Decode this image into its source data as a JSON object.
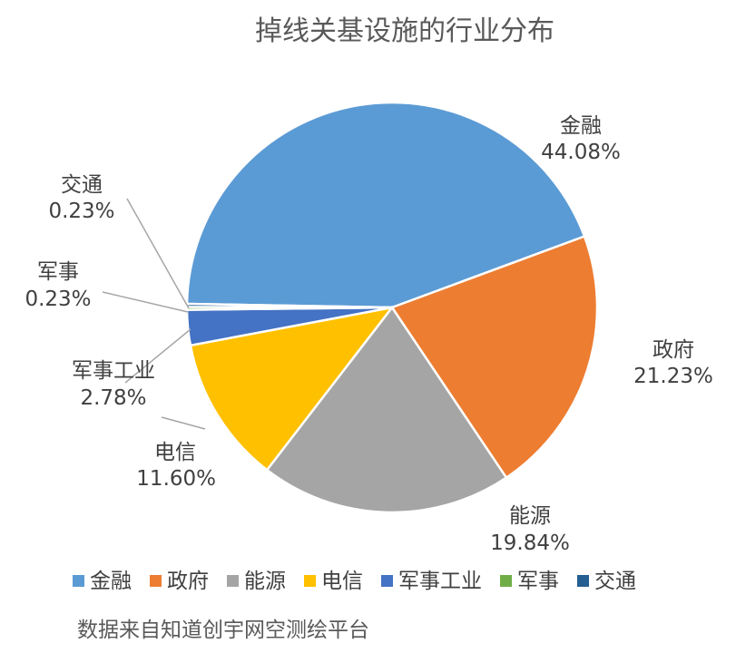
{
  "chart_data": {
    "type": "pie",
    "title": "掉线关基设施的行业分布",
    "categories": [
      "金融",
      "政府",
      "能源",
      "电信",
      "军事工业",
      "军事",
      "交通"
    ],
    "values": [
      44.08,
      21.23,
      19.84,
      11.6,
      2.78,
      0.23,
      0.23
    ],
    "value_labels": [
      "44.08%",
      "21.23%",
      "19.84%",
      "11.60%",
      "2.78%",
      "0.23%",
      "0.23%"
    ],
    "colors": [
      "#5B9BD5",
      "#ED7D31",
      "#A5A5A5",
      "#FFC000",
      "#4472C4",
      "#70AD47",
      "#255E91"
    ],
    "legend_position": "bottom",
    "start_angle_deg": -179,
    "direction": "clockwise"
  },
  "footer": {
    "source": "数据来自知道创宇网空测绘平台"
  }
}
